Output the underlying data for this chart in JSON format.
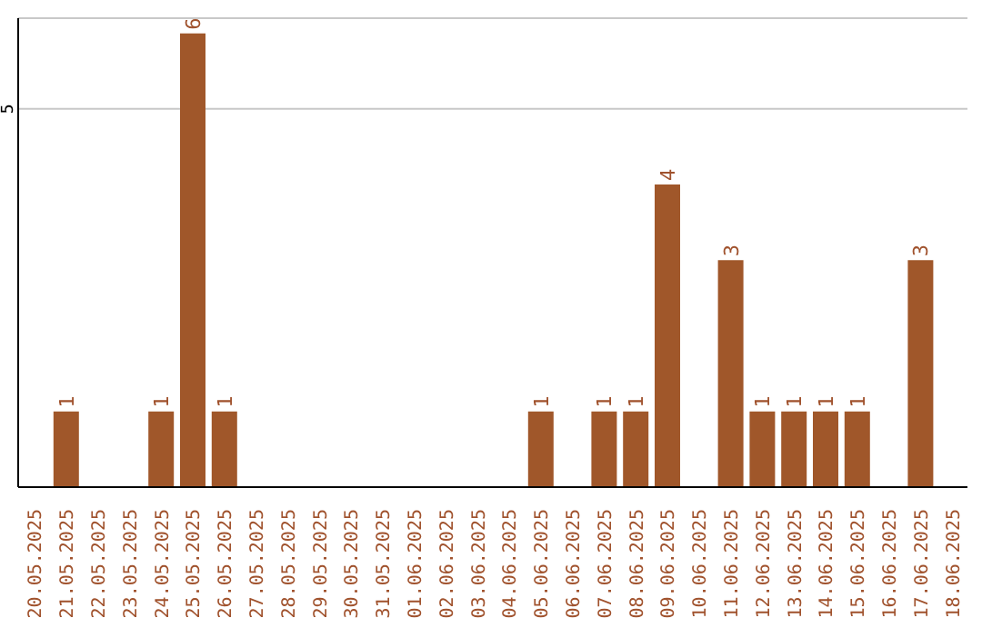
{
  "chart_data": {
    "type": "bar",
    "categories": [
      "20.05.2025",
      "21.05.2025",
      "22.05.2025",
      "23.05.2025",
      "24.05.2025",
      "25.05.2025",
      "26.05.2025",
      "27.05.2025",
      "28.05.2025",
      "29.05.2025",
      "30.05.2025",
      "31.05.2025",
      "01.06.2025",
      "02.06.2025",
      "03.06.2025",
      "04.06.2025",
      "05.06.2025",
      "06.06.2025",
      "07.06.2025",
      "08.06.2025",
      "09.06.2025",
      "10.06.2025",
      "11.06.2025",
      "12.06.2025",
      "13.06.2025",
      "14.06.2025",
      "15.06.2025",
      "16.06.2025",
      "17.06.2025",
      "18.06.2025"
    ],
    "values": [
      0,
      1,
      0,
      0,
      1,
      6,
      1,
      0,
      0,
      0,
      0,
      0,
      0,
      0,
      0,
      0,
      1,
      0,
      1,
      1,
      4,
      0,
      3,
      1,
      1,
      1,
      1,
      0,
      3,
      0
    ],
    "value_labels": [
      null,
      "1",
      null,
      null,
      "1",
      "6",
      "1",
      null,
      null,
      null,
      null,
      null,
      null,
      null,
      null,
      null,
      "1",
      null,
      "1",
      "1",
      "4",
      null,
      "3",
      "1",
      "1",
      "1",
      "1",
      null,
      "3",
      null
    ],
    "color": "#a0572a",
    "ylim": [
      0,
      6.2
    ],
    "yticks": [
      5
    ],
    "grid": "y"
  }
}
